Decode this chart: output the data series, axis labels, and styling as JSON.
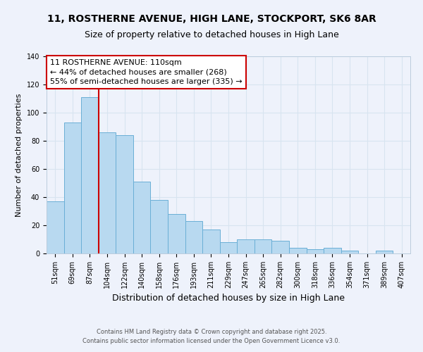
{
  "title": "11, ROSTHERNE AVENUE, HIGH LANE, STOCKPORT, SK6 8AR",
  "subtitle": "Size of property relative to detached houses in High Lane",
  "xlabel": "Distribution of detached houses by size in High Lane",
  "ylabel": "Number of detached properties",
  "bar_labels": [
    "51sqm",
    "69sqm",
    "87sqm",
    "104sqm",
    "122sqm",
    "140sqm",
    "158sqm",
    "176sqm",
    "193sqm",
    "211sqm",
    "229sqm",
    "247sqm",
    "265sqm",
    "282sqm",
    "300sqm",
    "318sqm",
    "336sqm",
    "354sqm",
    "371sqm",
    "389sqm",
    "407sqm"
  ],
  "bar_values": [
    37,
    93,
    111,
    86,
    84,
    51,
    38,
    28,
    23,
    17,
    8,
    10,
    10,
    9,
    4,
    3,
    4,
    2,
    0,
    2,
    0
  ],
  "bar_color": "#b8d9f0",
  "bar_edge_color": "#6aafd6",
  "background_color": "#eef2fb",
  "grid_color": "#d8e4f0",
  "ylim": [
    0,
    140
  ],
  "yticks": [
    0,
    20,
    40,
    60,
    80,
    100,
    120,
    140
  ],
  "vline_index": 3,
  "vline_color": "#cc0000",
  "annotation_title": "11 ROSTHERNE AVENUE: 110sqm",
  "annotation_line1": "← 44% of detached houses are smaller (268)",
  "annotation_line2": "55% of semi-detached houses are larger (335) →",
  "annotation_box_color": "#ffffff",
  "annotation_box_edge": "#cc0000",
  "footer1": "Contains HM Land Registry data © Crown copyright and database right 2025.",
  "footer2": "Contains public sector information licensed under the Open Government Licence v3.0.",
  "title_fontsize": 10,
  "subtitle_fontsize": 9,
  "xlabel_fontsize": 9,
  "ylabel_fontsize": 8,
  "tick_fontsize": 7,
  "footer_fontsize": 6,
  "ann_fontsize": 8
}
